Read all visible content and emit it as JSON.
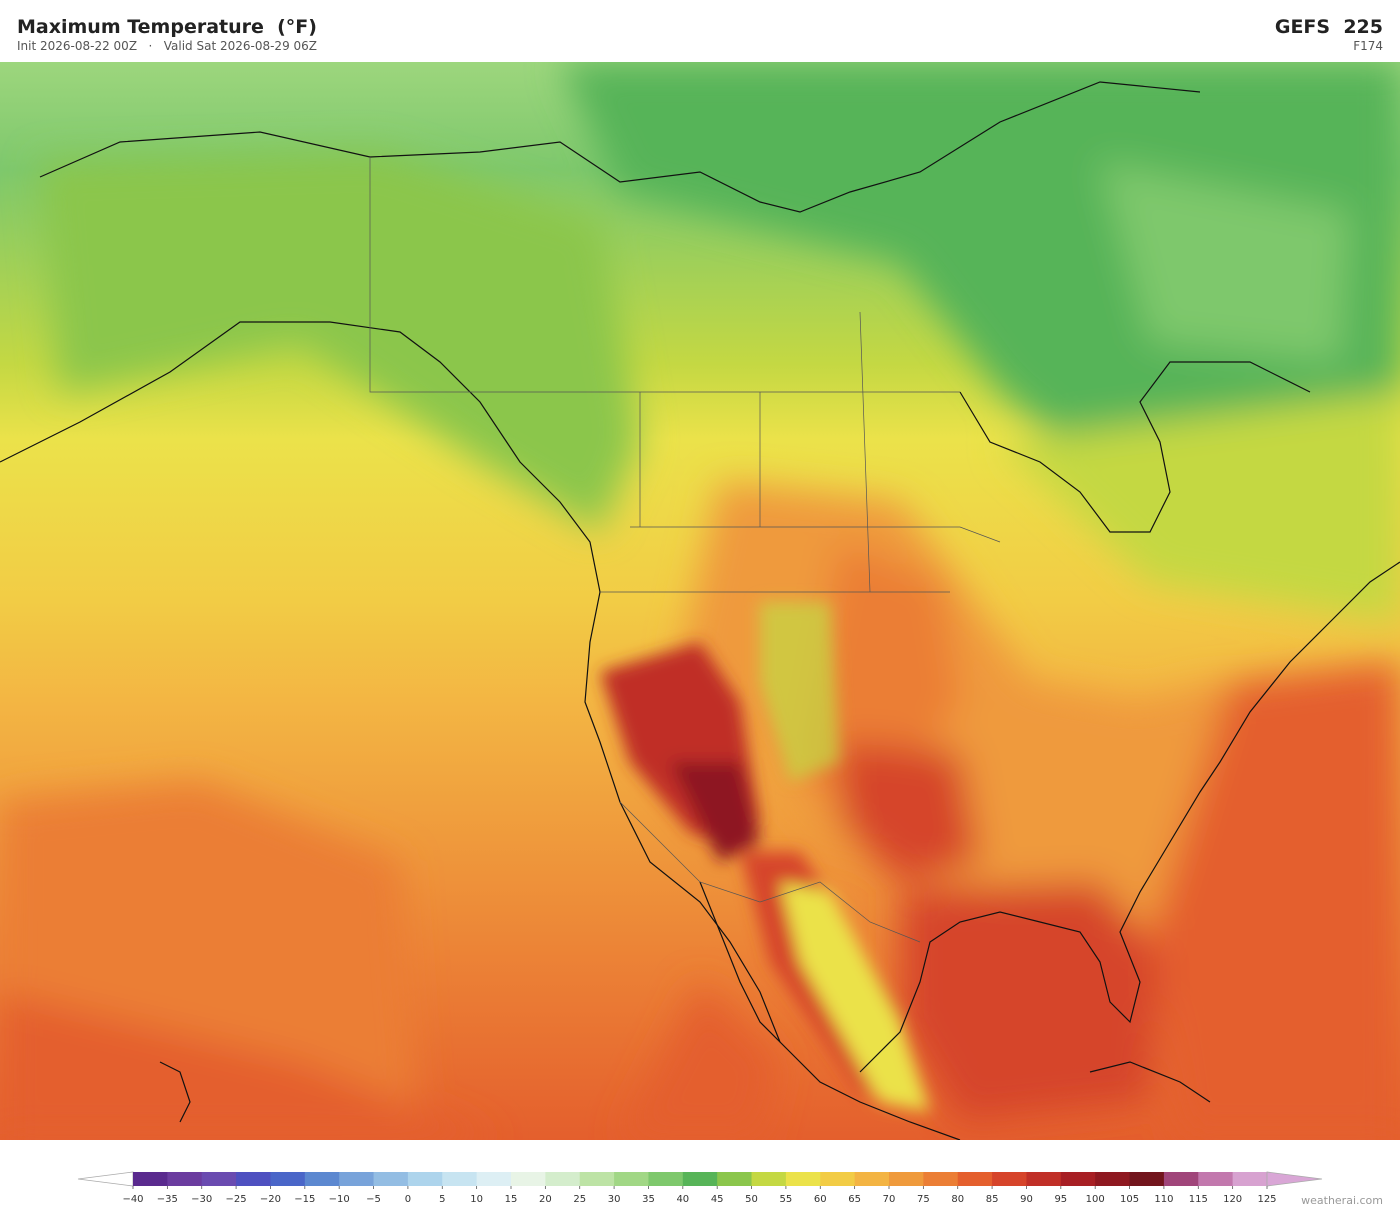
{
  "header": {
    "title": "Maximum Temperature  (°F)",
    "subtitle": "Init 2026-08-22 00Z   ·   Valid Sat 2026-08-29 06Z",
    "model": "GEFS  225",
    "forecast_hour": "F174"
  },
  "legend": {
    "ticks": [
      {
        "value": -40,
        "label": "−40"
      },
      {
        "value": -35,
        "label": "−35"
      },
      {
        "value": -30,
        "label": "−30"
      },
      {
        "value": -25,
        "label": "−25"
      },
      {
        "value": -20,
        "label": "−20"
      },
      {
        "value": -15,
        "label": "−15"
      },
      {
        "value": -10,
        "label": "−10"
      },
      {
        "value": -5,
        "label": "−5"
      },
      0,
      5,
      10,
      15,
      20,
      25,
      30,
      35,
      40,
      45,
      50,
      55,
      60,
      65,
      70,
      75,
      80,
      85,
      90,
      95,
      100,
      105,
      110,
      115,
      120,
      125
    ],
    "colors": [
      "#5a2a8e",
      "#6b3c9f",
      "#6a4bb0",
      "#4e50c0",
      "#4a66c8",
      "#5c88d0",
      "#78a3da",
      "#93bde3",
      "#add4ec",
      "#c7e4f1",
      "#ddeff4",
      "#e8f4e6",
      "#d4edcc",
      "#bde3a5",
      "#a1d785",
      "#7ec86c",
      "#57b458",
      "#8bc64c",
      "#c4d843",
      "#ebe24a",
      "#f2cc45",
      "#f3b443",
      "#ef9a3c",
      "#eb7e35",
      "#e45f2d",
      "#d6442a",
      "#c02f27",
      "#a71f24",
      "#8e1820",
      "#72151d",
      "#a0457a",
      "#c278ad",
      "#d7a2d0"
    ],
    "over_color": "#d9a6d6"
  },
  "credit": "weatherai.com"
}
